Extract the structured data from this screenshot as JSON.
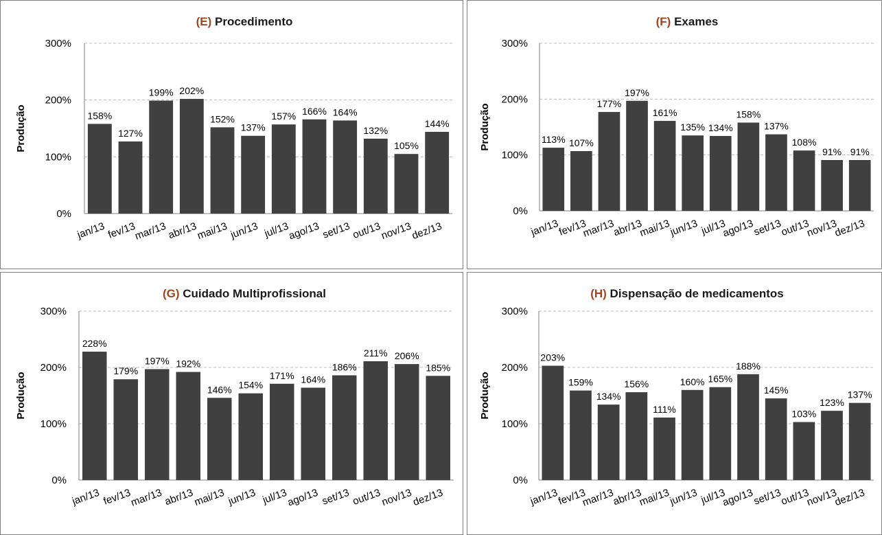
{
  "chart_data": [
    {
      "type": "bar",
      "title_letter": "(E)",
      "title_text": "Procedimento",
      "ylabel": "Produção",
      "yticks": [
        "0%",
        "100%",
        "200%",
        "300%"
      ],
      "ylim": [
        0,
        300
      ],
      "grid": true,
      "categories": [
        "jan/13",
        "fev/13",
        "mar/13",
        "abr/13",
        "mai/13",
        "jun/13",
        "jul/13",
        "ago/13",
        "set/13",
        "out/13",
        "nov/13",
        "dez/13"
      ],
      "values": [
        158,
        127,
        199,
        202,
        152,
        137,
        157,
        166,
        164,
        132,
        105,
        144
      ],
      "labels": [
        "158%",
        "127%",
        "199%",
        "202%",
        "152%",
        "137%",
        "157%",
        "166%",
        "164%",
        "132%",
        "105%",
        "144%"
      ],
      "bar_color": "#404040"
    },
    {
      "type": "bar",
      "title_letter": "(F)",
      "title_text": "Exames",
      "ylabel": "Produção",
      "yticks": [
        "0%",
        "100%",
        "200%",
        "300%"
      ],
      "ylim": [
        0,
        300
      ],
      "grid": true,
      "categories": [
        "jan/13",
        "fev/13",
        "mar/13",
        "abr/13",
        "mai/13",
        "jun/13",
        "jul/13",
        "ago/13",
        "set/13",
        "out/13",
        "nov/13",
        "dez/13"
      ],
      "values": [
        113,
        107,
        177,
        197,
        161,
        135,
        134,
        158,
        137,
        108,
        91,
        91
      ],
      "labels": [
        "113%",
        "107%",
        "177%",
        "197%",
        "161%",
        "135%",
        "134%",
        "158%",
        "137%",
        "108%",
        "91%",
        "91%"
      ],
      "bar_color": "#404040"
    },
    {
      "type": "bar",
      "title_letter": "(G)",
      "title_text": "Cuidado Multiprofissional",
      "ylabel": "Produção",
      "yticks": [
        "0%",
        "100%",
        "200%",
        "300%"
      ],
      "ylim": [
        0,
        300
      ],
      "grid": true,
      "categories": [
        "jan/13",
        "fev/13",
        "mar/13",
        "abr/13",
        "mai/13",
        "jun/13",
        "jul/13",
        "ago/13",
        "set/13",
        "out/13",
        "nov/13",
        "dez/13"
      ],
      "values": [
        228,
        179,
        197,
        192,
        146,
        154,
        171,
        164,
        186,
        211,
        206,
        185
      ],
      "labels": [
        "228%",
        "179%",
        "197%",
        "192%",
        "146%",
        "154%",
        "171%",
        "164%",
        "186%",
        "211%",
        "206%",
        "185%"
      ],
      "bar_color": "#404040"
    },
    {
      "type": "bar",
      "title_letter": "(H)",
      "title_text": "Dispensação  de medicamentos",
      "ylabel": "Produção",
      "yticks": [
        "0%",
        "100%",
        "200%",
        "300%"
      ],
      "ylim": [
        0,
        300
      ],
      "grid": true,
      "categories": [
        "jan/13",
        "fev/13",
        "mar/13",
        "abr/13",
        "mai/13",
        "jun/13",
        "jul/13",
        "ago/13",
        "set/13",
        "out/13",
        "nov/13",
        "dez/13"
      ],
      "values": [
        203,
        159,
        134,
        156,
        111,
        160,
        165,
        188,
        145,
        103,
        123,
        137
      ],
      "labels": [
        "203%",
        "159%",
        "134%",
        "156%",
        "111%",
        "160%",
        "165%",
        "188%",
        "145%",
        "103%",
        "123%",
        "137%"
      ],
      "bar_color": "#404040"
    }
  ]
}
